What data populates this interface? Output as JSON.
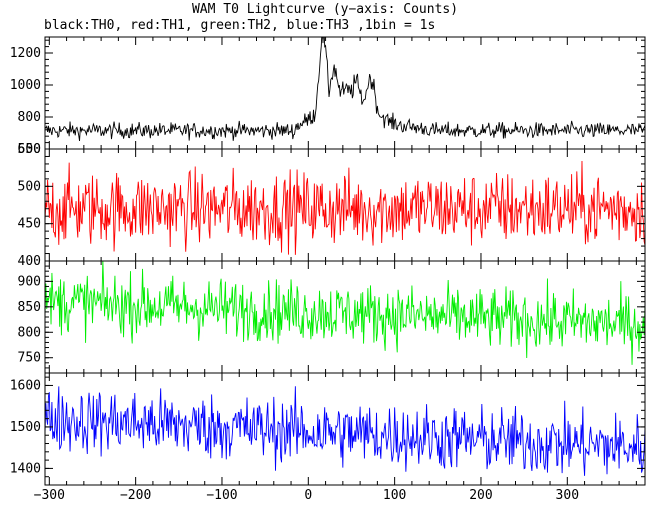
{
  "title": "WAM T0 Lightcurve (y−axis: Counts)",
  "subtitle": "black:TH0, red:TH1, green:TH2, blue:TH3 ,1bin = 1s",
  "chart_data": {
    "type": "line",
    "xlabel": "",
    "xlim": [
      -305,
      390
    ],
    "x_ticks": [
      "−300",
      "−200",
      "−100",
      "0",
      "100",
      "200",
      "300"
    ],
    "bin_size_s": 1,
    "panels": [
      {
        "name": "TH0",
        "color": "#000000",
        "ylim": [
          600,
          1300
        ],
        "y_ticks": [
          "600",
          "800",
          "1000",
          "1200"
        ],
        "baseline": 715,
        "noise_amplitude": 25,
        "burst": {
          "peak_time": 17,
          "peak_value": 1310,
          "secondary_peaks": [
            [
              30,
              1100
            ],
            [
              55,
              1020
            ],
            [
              72,
              1040
            ]
          ],
          "end_time": 100
        }
      },
      {
        "name": "TH1",
        "color": "#ff0000",
        "ylim": [
          400,
          550
        ],
        "y_ticks": [
          "400",
          "450",
          "500",
          "550"
        ],
        "baseline": 470,
        "noise_amplitude": 25
      },
      {
        "name": "TH2",
        "color": "#00ee00",
        "ylim": [
          720,
          940
        ],
        "y_ticks": [
          "750",
          "800",
          "850",
          "900"
        ],
        "baseline_start": 860,
        "baseline_end": 815,
        "noise_amplitude": 30
      },
      {
        "name": "TH3",
        "color": "#0000ff",
        "ylim": [
          1360,
          1630
        ],
        "y_ticks": [
          "1400",
          "1500",
          "1600"
        ],
        "baseline_start": 1520,
        "baseline_end": 1450,
        "noise_amplitude": 40
      }
    ]
  }
}
